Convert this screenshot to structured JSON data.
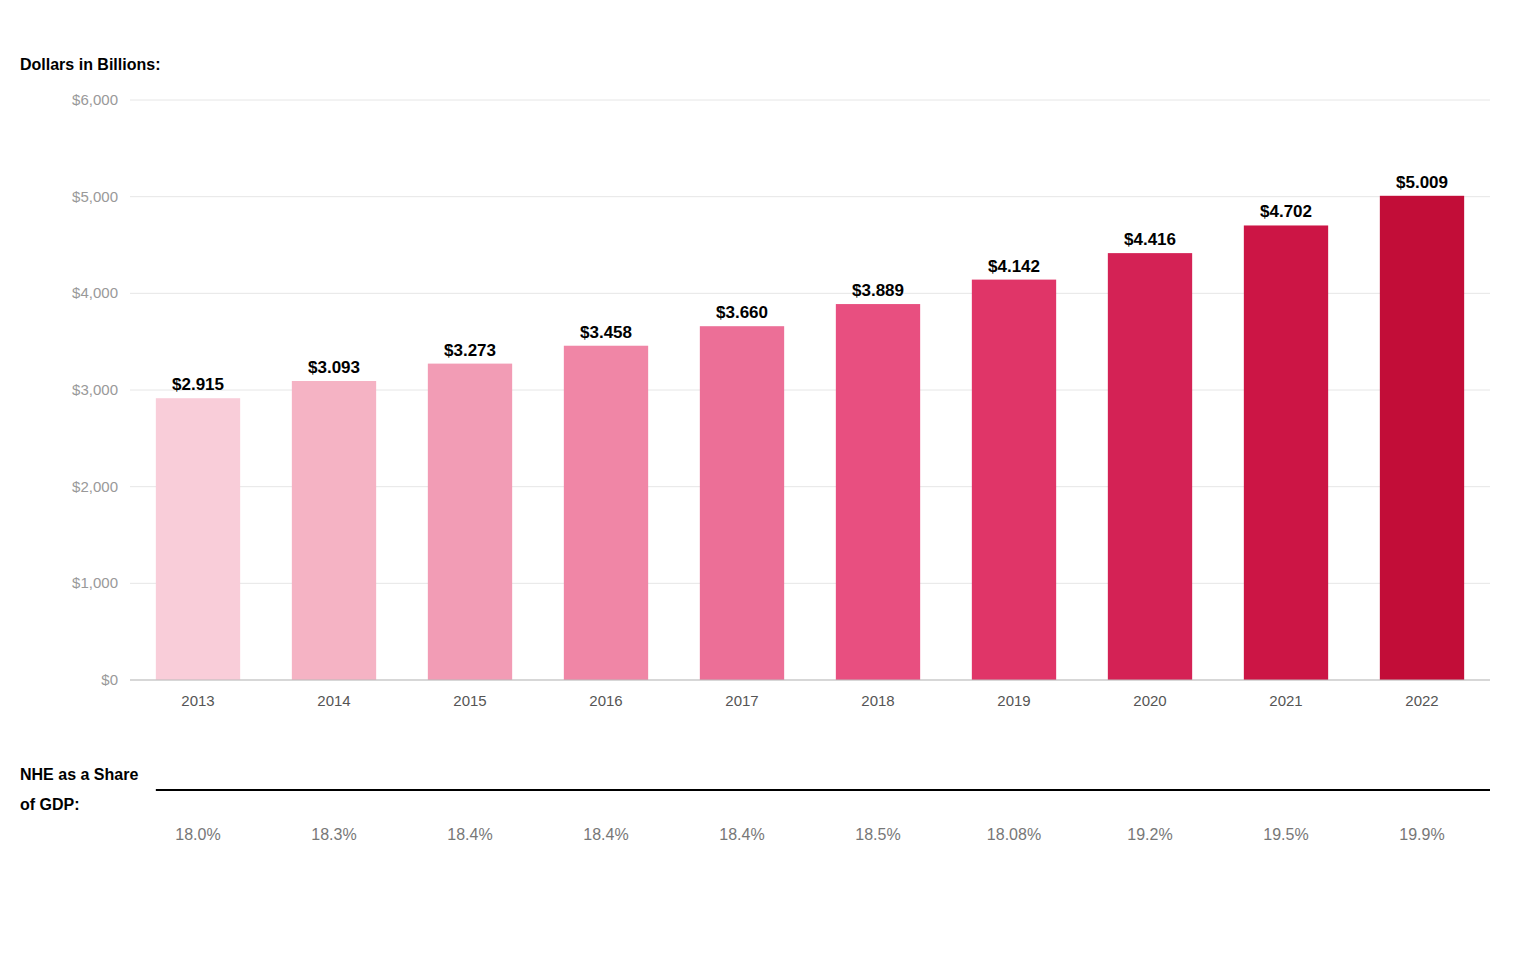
{
  "chart_data": {
    "type": "bar",
    "ylabel": "Dollars in Billions:",
    "categories": [
      "2013",
      "2014",
      "2015",
      "2016",
      "2017",
      "2018",
      "2019",
      "2020",
      "2021",
      "2022"
    ],
    "values": [
      2915,
      3093,
      3273,
      3458,
      3660,
      3889,
      4142,
      4416,
      4702,
      5009
    ],
    "value_labels": [
      "$2.915",
      "$3.093",
      "$3.273",
      "$3.458",
      "$3.660",
      "$3.889",
      "$4.142",
      "$4.416",
      "$4.702",
      "$5.009"
    ],
    "data_labels": true,
    "colors": [
      "#f9cdd9",
      "#f5b3c4",
      "#f29cb5",
      "#f086a6",
      "#ec6f97",
      "#e84f80",
      "#e03568",
      "#d42255",
      "#cc1545",
      "#c20d38"
    ],
    "ylim": [
      0,
      6000
    ],
    "yticks": [
      {
        "value": 0,
        "label": "$0"
      },
      {
        "value": 1000,
        "label": "$1,000"
      },
      {
        "value": 2000,
        "label": "$2,000"
      },
      {
        "value": 3000,
        "label": "$3,000"
      },
      {
        "value": 4000,
        "label": "$4,000"
      },
      {
        "value": 5000,
        "label": "$5,000"
      },
      {
        "value": 6000,
        "label": "$6,000"
      }
    ],
    "grid": true,
    "gdp_share": {
      "title_lines": [
        "NHE as a Share",
        "of GDP:"
      ],
      "values": [
        18.0,
        18.3,
        18.4,
        18.4,
        18.4,
        18.5,
        18.08,
        19.2,
        19.5,
        19.9
      ],
      "value_labels": [
        "18.0%",
        "18.3%",
        "18.4%",
        "18.4%",
        "18.4%",
        "18.5%",
        "18.08%",
        "19.2%",
        "19.5%",
        "19.9%"
      ]
    }
  }
}
